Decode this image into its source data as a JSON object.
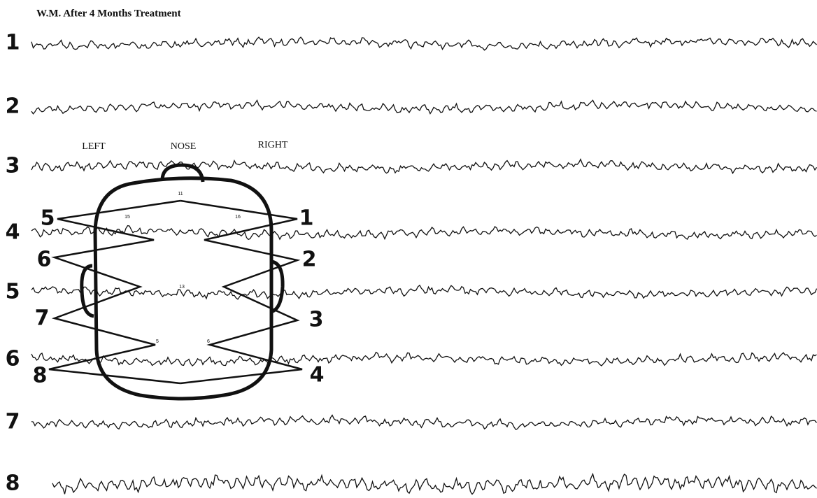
{
  "title": "W.M. After 4 Months Treatment",
  "channels": [
    "1",
    "2",
    "3",
    "4",
    "5",
    "6",
    "7",
    "8"
  ],
  "head": {
    "left": "LEFT",
    "nose": "NOSE",
    "right": "RIGHT",
    "left_leads": [
      "5",
      "6",
      "7",
      "8"
    ],
    "right_leads": [
      "1",
      "2",
      "3",
      "4"
    ],
    "electrodes": [
      "11",
      "15",
      "16",
      "13",
      "5",
      "6"
    ]
  }
}
